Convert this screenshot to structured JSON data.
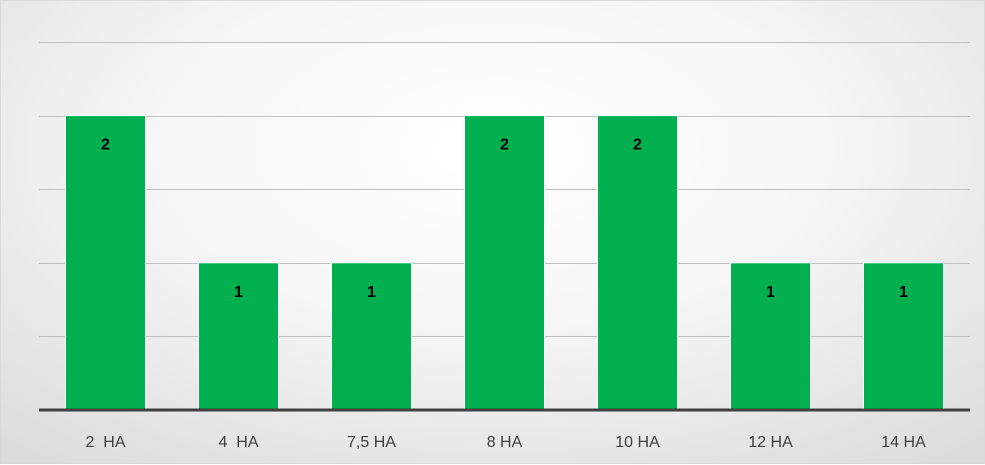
{
  "chart_data": {
    "type": "bar",
    "title": "",
    "xlabel": "",
    "ylabel": "",
    "categories": [
      "2  HA",
      "4  HA",
      "7,5 HA",
      "8 HA",
      "10 HA",
      "12 HA",
      "14 HA"
    ],
    "values": [
      2,
      1,
      1,
      2,
      2,
      1,
      1
    ],
    "ylim": [
      0,
      2.5
    ],
    "grid": true,
    "legend": "none",
    "show_data_labels": true,
    "colors": {
      "bar": "#00b050",
      "grid": "#bfbfbf",
      "axis": "#404040",
      "label": "#000000"
    }
  }
}
